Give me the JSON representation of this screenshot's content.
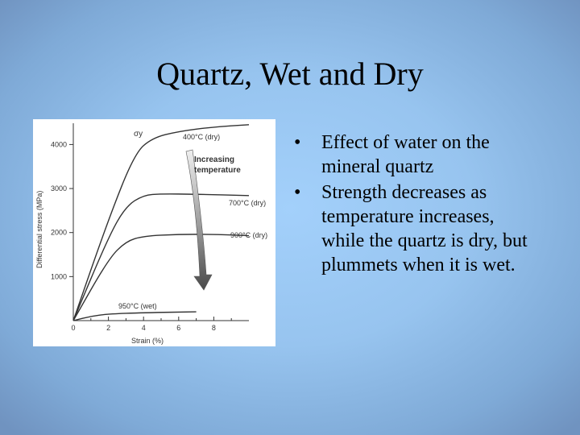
{
  "slide": {
    "title": "Quartz, Wet and Dry",
    "bullets": [
      "Effect of water on the mineral quartz",
      "Strength decreases as temperature increases, while the quartz is dry, but plummets when it is wet."
    ],
    "bullet_glyph": "•"
  },
  "chart_data": {
    "type": "line",
    "xlabel": "Strain (%)",
    "ylabel": "Differential stress (MPa)",
    "xlim": [
      0,
      10
    ],
    "ylim": [
      0,
      4300
    ],
    "x_ticks": [
      "0",
      "2",
      "4",
      "6",
      "8"
    ],
    "y_ticks": [
      "1000",
      "2000",
      "3000",
      "4000"
    ],
    "yield_label": "σy",
    "arrow_label": [
      "Increasing",
      "temperature"
    ],
    "series": [
      {
        "name": "400°C (dry)",
        "points": [
          [
            0,
            0
          ],
          [
            2,
            2300
          ],
          [
            3.5,
            3800
          ],
          [
            4.5,
            4150
          ],
          [
            6,
            4300
          ],
          [
            8,
            4400
          ],
          [
            10,
            4450
          ]
        ]
      },
      {
        "name": "700°C (dry)",
        "points": [
          [
            0,
            0
          ],
          [
            2,
            1900
          ],
          [
            3,
            2600
          ],
          [
            4,
            2850
          ],
          [
            5,
            2880
          ],
          [
            7,
            2870
          ],
          [
            10,
            2840
          ]
        ]
      },
      {
        "name": "900°C (dry)",
        "points": [
          [
            0,
            0
          ],
          [
            2,
            1400
          ],
          [
            3,
            1800
          ],
          [
            4,
            1920
          ],
          [
            6,
            1960
          ],
          [
            8,
            1960
          ],
          [
            10,
            1930
          ]
        ]
      },
      {
        "name": "950°C (wet)",
        "points": [
          [
            0,
            0
          ],
          [
            1,
            100
          ],
          [
            2,
            150
          ],
          [
            4,
            180
          ],
          [
            7,
            200
          ]
        ]
      }
    ],
    "colors": {
      "curves": "#333333",
      "arrow_dark": "#4a4a4a",
      "arrow_light": "#e8e8e8"
    }
  }
}
